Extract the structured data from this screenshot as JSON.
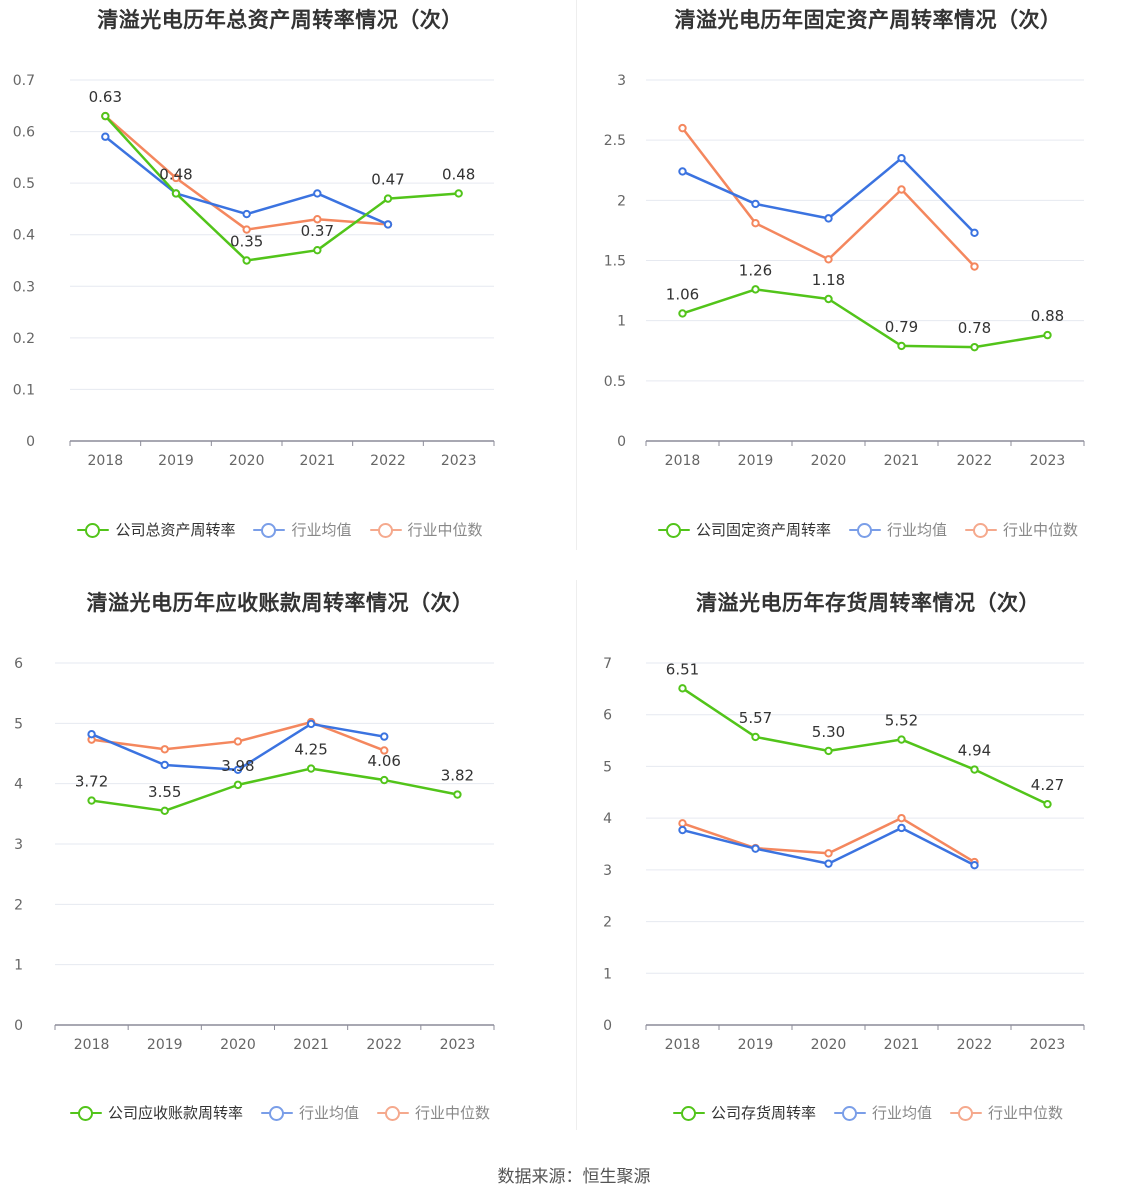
{
  "source": "数据来源：恒生聚源",
  "charts": [
    {
      "title": "清溢光电历年总资产周转率情况（次）",
      "ylim": [
        0,
        0.7
      ],
      "yticks": [
        "0",
        "0.1",
        "0.2",
        "0.3",
        "0.4",
        "0.5",
        "0.6",
        "0.7"
      ],
      "labels": [
        "0.63",
        "0.48",
        "0.35",
        "0.37",
        "0.47",
        "0.48"
      ],
      "legend": [
        "公司总资产周转率",
        "行业均值",
        "行业中位数"
      ]
    },
    {
      "title": "清溢光电历年固定资产周转率情况（次）",
      "ylim": [
        0,
        3
      ],
      "yticks": [
        "0",
        "0.5",
        "1",
        "1.5",
        "2",
        "2.5",
        "3"
      ],
      "labels": [
        "1.06",
        "1.26",
        "1.18",
        "0.79",
        "0.78",
        "0.88"
      ],
      "legend": [
        "公司固定资产周转率",
        "行业均值",
        "行业中位数"
      ]
    },
    {
      "title": "清溢光电历年应收账款周转率情况（次）",
      "ylim": [
        0,
        6
      ],
      "yticks": [
        "0",
        "1",
        "2",
        "3",
        "4",
        "5",
        "6"
      ],
      "labels": [
        "3.72",
        "3.55",
        "3.98",
        "4.25",
        "4.06",
        "3.82"
      ],
      "legend": [
        "公司应收账款周转率",
        "行业均值",
        "行业中位数"
      ]
    },
    {
      "title": "清溢光电历年存货周转率情况（次）",
      "ylim": [
        0,
        7
      ],
      "yticks": [
        "0",
        "1",
        "2",
        "3",
        "4",
        "5",
        "6",
        "7"
      ],
      "labels": [
        "6.51",
        "5.57",
        "5.30",
        "5.52",
        "4.94",
        "4.27"
      ],
      "legend": [
        "公司存货周转率",
        "行业均值",
        "行业中位数"
      ]
    }
  ],
  "chart_data": [
    {
      "type": "line",
      "title": "清溢光电历年总资产周转率情况（次）",
      "categories": [
        "2018",
        "2019",
        "2020",
        "2021",
        "2022",
        "2023"
      ],
      "ylim": [
        0,
        0.7
      ],
      "grid": true,
      "legend_position": "bottom",
      "series": [
        {
          "name": "公司总资产周转率",
          "color": "#52c41a",
          "values": [
            0.63,
            0.48,
            0.35,
            0.37,
            0.47,
            0.48
          ]
        },
        {
          "name": "行业均值",
          "color": "#3b73e0",
          "values": [
            0.59,
            0.48,
            0.44,
            0.48,
            0.42,
            null
          ]
        },
        {
          "name": "行业中位数",
          "color": "#f4875e",
          "values": [
            0.63,
            0.51,
            0.41,
            0.43,
            0.42,
            null
          ]
        }
      ]
    },
    {
      "type": "line",
      "title": "清溢光电历年固定资产周转率情况（次）",
      "categories": [
        "2018",
        "2019",
        "2020",
        "2021",
        "2022",
        "2023"
      ],
      "ylim": [
        0,
        3
      ],
      "grid": true,
      "legend_position": "bottom",
      "series": [
        {
          "name": "公司固定资产周转率",
          "color": "#52c41a",
          "values": [
            1.06,
            1.26,
            1.18,
            0.79,
            0.78,
            0.88
          ]
        },
        {
          "name": "行业均值",
          "color": "#3b73e0",
          "values": [
            2.24,
            1.97,
            1.85,
            2.35,
            1.73,
            null
          ]
        },
        {
          "name": "行业中位数",
          "color": "#f4875e",
          "values": [
            2.6,
            1.81,
            1.51,
            2.09,
            1.45,
            null
          ]
        }
      ]
    },
    {
      "type": "line",
      "title": "清溢光电历年应收账款周转率情况（次）",
      "categories": [
        "2018",
        "2019",
        "2020",
        "2021",
        "2022",
        "2023"
      ],
      "ylim": [
        0,
        6
      ],
      "grid": true,
      "legend_position": "bottom",
      "series": [
        {
          "name": "公司应收账款周转率",
          "color": "#52c41a",
          "values": [
            3.72,
            3.55,
            3.98,
            4.25,
            4.06,
            3.82
          ]
        },
        {
          "name": "行业均值",
          "color": "#3b73e0",
          "values": [
            4.82,
            4.31,
            4.23,
            4.99,
            4.78,
            null
          ]
        },
        {
          "name": "行业中位数",
          "color": "#f4875e",
          "values": [
            4.73,
            4.57,
            4.7,
            5.02,
            4.55,
            null
          ]
        }
      ]
    },
    {
      "type": "line",
      "title": "清溢光电历年存货周转率情况（次）",
      "categories": [
        "2018",
        "2019",
        "2020",
        "2021",
        "2022",
        "2023"
      ],
      "ylim": [
        0,
        7
      ],
      "grid": true,
      "legend_position": "bottom",
      "series": [
        {
          "name": "公司存货周转率",
          "color": "#52c41a",
          "values": [
            6.51,
            5.57,
            5.3,
            5.52,
            4.94,
            4.27
          ]
        },
        {
          "name": "行业均值",
          "color": "#3b73e0",
          "values": [
            3.77,
            3.41,
            3.12,
            3.81,
            3.09,
            null
          ]
        },
        {
          "name": "行业中位数",
          "color": "#f4875e",
          "values": [
            3.9,
            3.42,
            3.32,
            4.0,
            3.15,
            null
          ]
        }
      ]
    }
  ]
}
